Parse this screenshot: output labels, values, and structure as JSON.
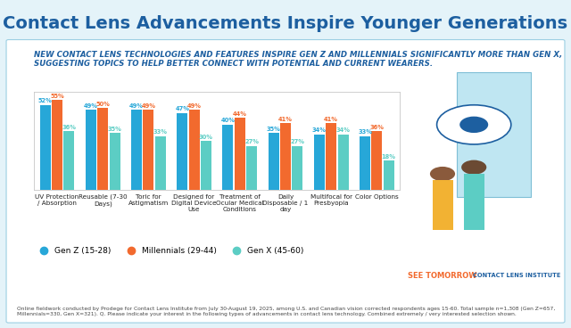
{
  "chart_data": {
    "type": "bar",
    "title": "Contact Lens Advancements Inspire Younger Generations",
    "subtitle": "NEW CONTACT LENS TECHNOLOGIES AND FEATURES INSPIRE GEN Z AND MILLENNIALS SIGNIFICANTLY MORE THAN GEN X, SUGGESTING TOPICS TO HELP BETTER CONNECT WITH POTENTIAL AND CURRENT WEARERS.",
    "categories": [
      "UV Protection / Absorption",
      "Reusable (7-30 Days)",
      "Toric for Astigmatism",
      "Designed for Digital Device Use",
      "Treatment of Ocular Medical Conditions",
      "Daily Disposable / 1 day",
      "Multifocal for Presbyopia",
      "Color Options"
    ],
    "series": [
      {
        "name": "Gen Z (15-28)",
        "color": "#27a7d8",
        "values": [
          52,
          49,
          49,
          47,
          40,
          35,
          34,
          33
        ],
        "value_labels": [
          "52%",
          "49%",
          "49%",
          "47%",
          "40%",
          "35%",
          "34%",
          "33%"
        ]
      },
      {
        "name": "Millennials (29-44)",
        "color": "#f26a2e",
        "values": [
          55,
          50,
          49,
          49,
          44,
          41,
          41,
          36
        ],
        "value_labels": [
          "55%",
          "50%",
          "49%",
          "49%",
          "44%",
          "41%",
          "41%",
          "36%"
        ]
      },
      {
        "name": "Gen X (45-60)",
        "color": "#5ccdc4",
        "values": [
          36,
          35,
          33,
          30,
          27,
          27,
          34,
          18
        ],
        "value_labels": [
          "36%",
          "35%",
          "33%",
          "30%",
          "27%",
          "27%",
          "34%",
          "18%"
        ]
      }
    ],
    "ylim": [
      0,
      60
    ],
    "data_labels": true,
    "tick_labels": "x",
    "grid": false,
    "legend": "lower left",
    "footnote": "Online fieldwork conducted by Prodege for Contact Lens Institute from July 30-August 19, 2025, among U.S. and Canadian vision corrected respondents ages 15-60. Total sample n=1,308 (Gen Z=657, Millennials=330, Gen X=321). Q. Please indicate your interest in the following types of advancements in contact lens technology. Combined extremely / very interested selection shown.",
    "logos": [
      "SEE TOMORROW",
      "CONTACT LENS INSTITUTE"
    ]
  }
}
